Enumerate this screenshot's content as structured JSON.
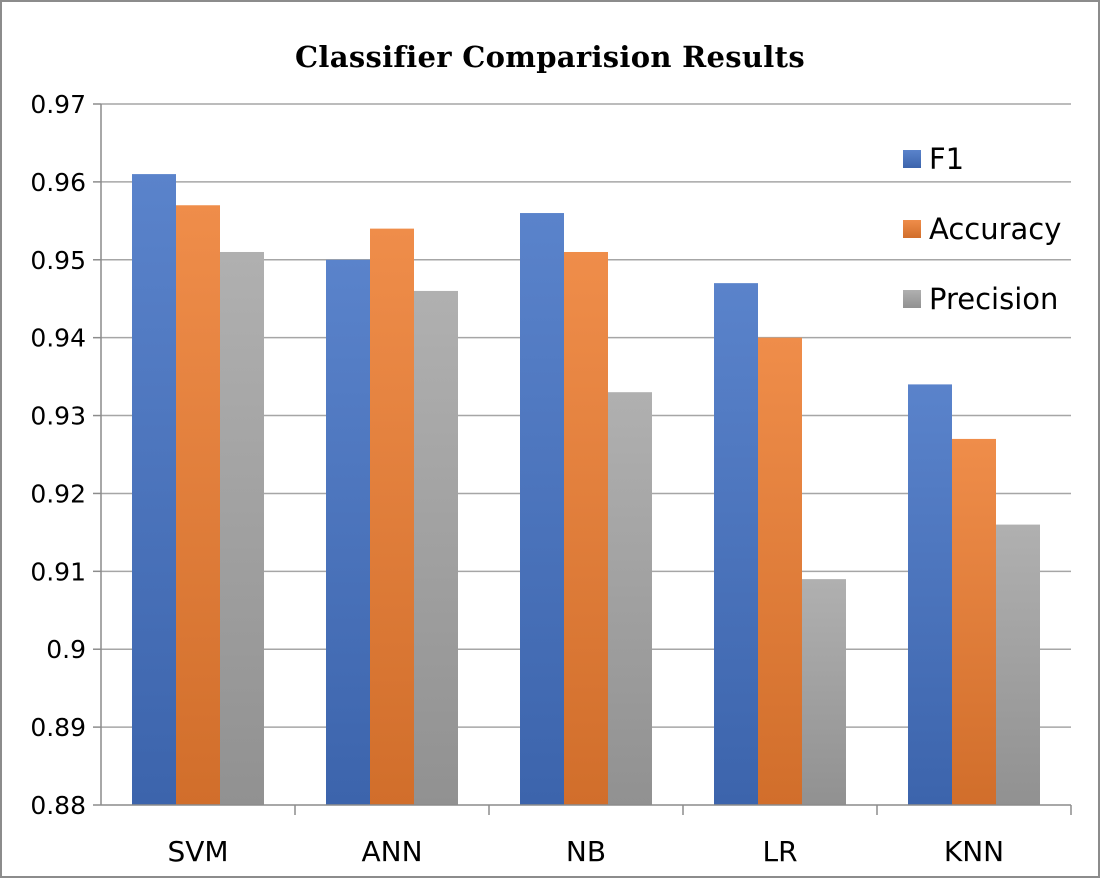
{
  "chart_data": {
    "type": "bar",
    "title": "Classifier  Comparision Results",
    "categories": [
      "SVM",
      "ANN",
      "NB",
      "LR",
      "KNN"
    ],
    "series": [
      {
        "name": "F1",
        "values": [
          0.961,
          0.95,
          0.956,
          0.947,
          0.934
        ],
        "color": "#4472c4"
      },
      {
        "name": "Accuracy",
        "values": [
          0.957,
          0.954,
          0.951,
          0.94,
          0.927
        ],
        "color": "#ed7d31"
      },
      {
        "name": "Precision",
        "values": [
          0.951,
          0.946,
          0.933,
          0.909,
          0.916
        ],
        "color": "#a5a5a5"
      }
    ],
    "ylim": [
      0.88,
      0.97
    ],
    "yticks": [
      "0.88",
      "0.89",
      "0.9",
      "0.91",
      "0.92",
      "0.93",
      "0.94",
      "0.95",
      "0.96",
      "0.97"
    ],
    "xlabel": "",
    "ylabel": "",
    "grid": true,
    "legend_position": "right"
  }
}
